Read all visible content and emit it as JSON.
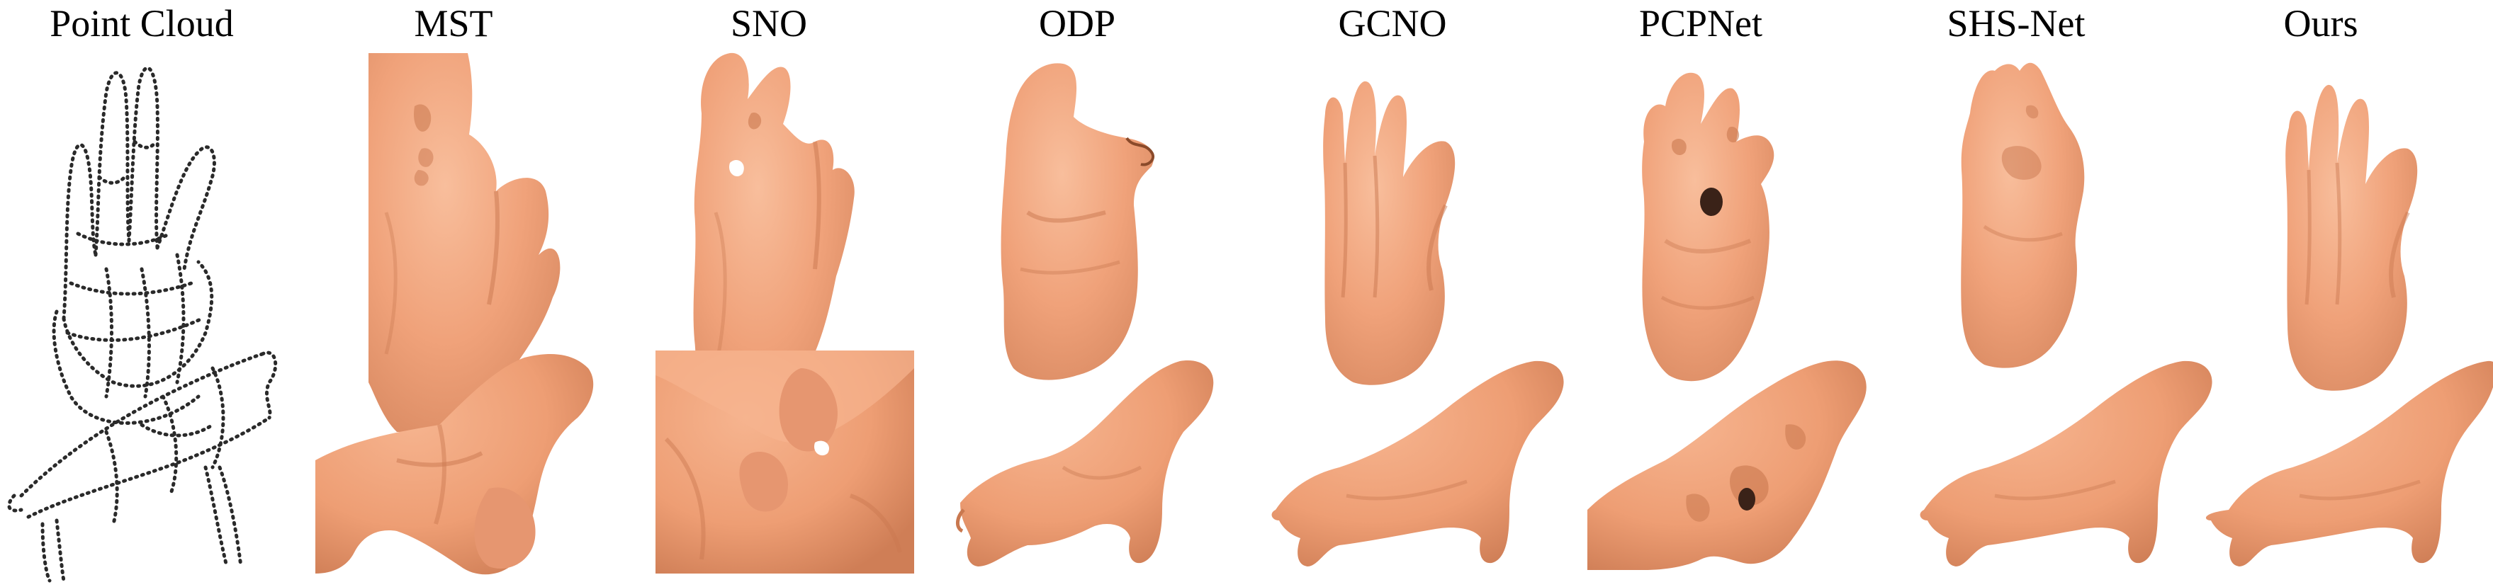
{
  "figure": {
    "columns": [
      {
        "id": "point-cloud",
        "label": "Point Cloud"
      },
      {
        "id": "mst",
        "label": "MST"
      },
      {
        "id": "sno",
        "label": "SNO"
      },
      {
        "id": "odp",
        "label": "ODP"
      },
      {
        "id": "gcno",
        "label": "GCNO"
      },
      {
        "id": "pcpnet",
        "label": "PCPNet"
      },
      {
        "id": "shs-net",
        "label": "SHS-Net"
      },
      {
        "id": "ours",
        "label": "Ours"
      }
    ],
    "rows": [
      {
        "id": "hand",
        "subject": "hand"
      },
      {
        "id": "animal",
        "subject": "animal"
      }
    ],
    "colors": {
      "surface": "#F0A27A",
      "surface_shadow": "#C9784F",
      "surface_highlight": "#F8BE9C",
      "points": "#2a2a2a",
      "background": "#FFFFFF"
    }
  }
}
